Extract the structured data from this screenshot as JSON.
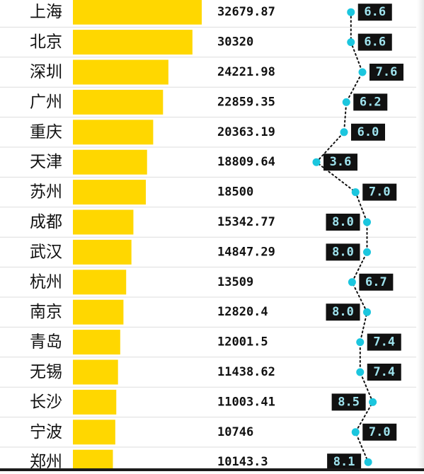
{
  "chart_data": {
    "type": "bar",
    "categories": [
      "上海",
      "北京",
      "深圳",
      "广州",
      "重庆",
      "天津",
      "苏州",
      "成都",
      "武汉",
      "杭州",
      "南京",
      "青岛",
      "无锡",
      "长沙",
      "宁波",
      "郑州"
    ],
    "series": [
      {
        "values": [
          32679.87,
          30320,
          24221.98,
          22859.35,
          20363.19,
          18809.64,
          18500,
          15342.77,
          14847.29,
          13509,
          12820.4,
          12001.5,
          11438.62,
          11003.41,
          10746,
          10143.3
        ]
      },
      {
        "values": [
          6.6,
          6.6,
          7.6,
          6.2,
          6.0,
          3.6,
          7.0,
          8.0,
          8.0,
          6.7,
          8.0,
          7.4,
          7.4,
          8.5,
          7.0,
          8.1
        ]
      }
    ],
    "value_labels": [
      "32679.87",
      "30320",
      "24221.98",
      "22859.35",
      "20363.19",
      "18809.64",
      "18500",
      "15342.77",
      "14847.29",
      "13509",
      "12820.4",
      "12001.5",
      "11438.62",
      "11003.41",
      "10746",
      "10143.3"
    ],
    "rate_labels": [
      "6.6",
      "6.6",
      "7.6",
      "6.2",
      "6.0",
      "3.6",
      "7.0",
      "8.0",
      "8.0",
      "6.7",
      "8.0",
      "7.4",
      "7.4",
      "8.5",
      "7.0",
      "8.1"
    ],
    "bar_color": "#FFD700",
    "rate_line_color": "#111111",
    "rate_marker_color": "#1BC6DE",
    "rate_label_bg": "#111111",
    "rate_label_text_color": "#9FE3EE",
    "text_color": "#111111",
    "divider_color": "#DDDDDD"
  }
}
